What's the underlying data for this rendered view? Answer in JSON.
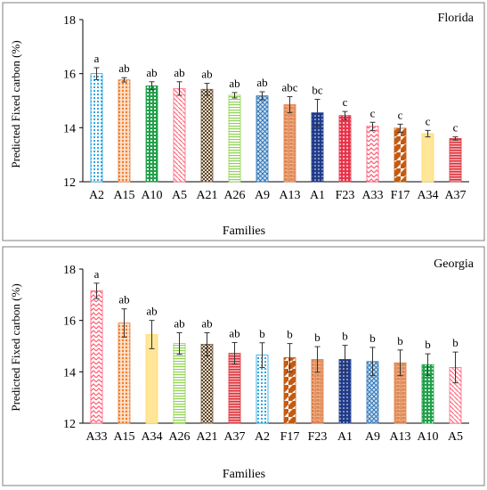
{
  "chart_data": [
    {
      "type": "bar",
      "title": "Florida",
      "xlabel": "Families",
      "ylabel": "Predicted Fixed carbon (%)",
      "ylim": [
        12,
        18
      ],
      "yticks": [
        12,
        14,
        16,
        18
      ],
      "grid": false,
      "categories": [
        "A2",
        "A15",
        "A10",
        "A5",
        "A21",
        "A26",
        "A9",
        "A13",
        "A1",
        "F23",
        "A33",
        "F17",
        "A34",
        "A37"
      ],
      "values": [
        16.0,
        15.77,
        15.55,
        15.45,
        15.42,
        15.2,
        15.18,
        14.85,
        14.55,
        14.45,
        14.05,
        13.98,
        13.78,
        13.6
      ],
      "errors": [
        0.22,
        0.08,
        0.15,
        0.25,
        0.22,
        0.1,
        0.15,
        0.3,
        0.5,
        0.15,
        0.15,
        0.15,
        0.12,
        0.06
      ],
      "letters": [
        "a",
        "ab",
        "ab",
        "ab",
        "ab",
        "ab",
        "ab",
        "abc",
        "bc",
        "c",
        "c",
        "c",
        "c",
        "c"
      ],
      "colors": [
        "#1f9fdf",
        "#ee7d31",
        "#21a04a",
        "#ff6b81",
        "#7a5c3b",
        "#8fd14f",
        "#2e75b6",
        "#e07c45",
        "#1f3b8a",
        "#e8344a",
        "#ff5a72",
        "#c55a11",
        "#ffd966",
        "#d9343b"
      ]
    },
    {
      "type": "bar",
      "title": "Georgia",
      "xlabel": "Families",
      "ylabel": "Predicted Fixed carbon (%)",
      "ylim": [
        12,
        18
      ],
      "yticks": [
        12,
        14,
        16,
        18
      ],
      "grid": false,
      "categories": [
        "A33",
        "A15",
        "A34",
        "A26",
        "A21",
        "A37",
        "A2",
        "F17",
        "F23",
        "A1",
        "A9",
        "A13",
        "A10",
        "A5"
      ],
      "values": [
        17.15,
        15.9,
        15.45,
        15.1,
        15.07,
        14.72,
        14.65,
        14.55,
        14.48,
        14.48,
        14.4,
        14.35,
        14.28,
        14.17
      ],
      "errors": [
        0.3,
        0.55,
        0.55,
        0.42,
        0.45,
        0.42,
        0.48,
        0.55,
        0.5,
        0.55,
        0.55,
        0.5,
        0.42,
        0.6
      ],
      "letters": [
        "a",
        "ab",
        "ab",
        "ab",
        "ab",
        "ab",
        "b",
        "b",
        "b",
        "b",
        "b",
        "b",
        "b",
        "b"
      ],
      "colors": [
        "#ff5a72",
        "#ee7d31",
        "#ffd966",
        "#8fd14f",
        "#7a5c3b",
        "#d9343b",
        "#1f9fdf",
        "#c55a11",
        "#e07c45",
        "#1f3b8a",
        "#2e75b6",
        "#e07c45",
        "#21a04a",
        "#ff6b81"
      ]
    }
  ]
}
